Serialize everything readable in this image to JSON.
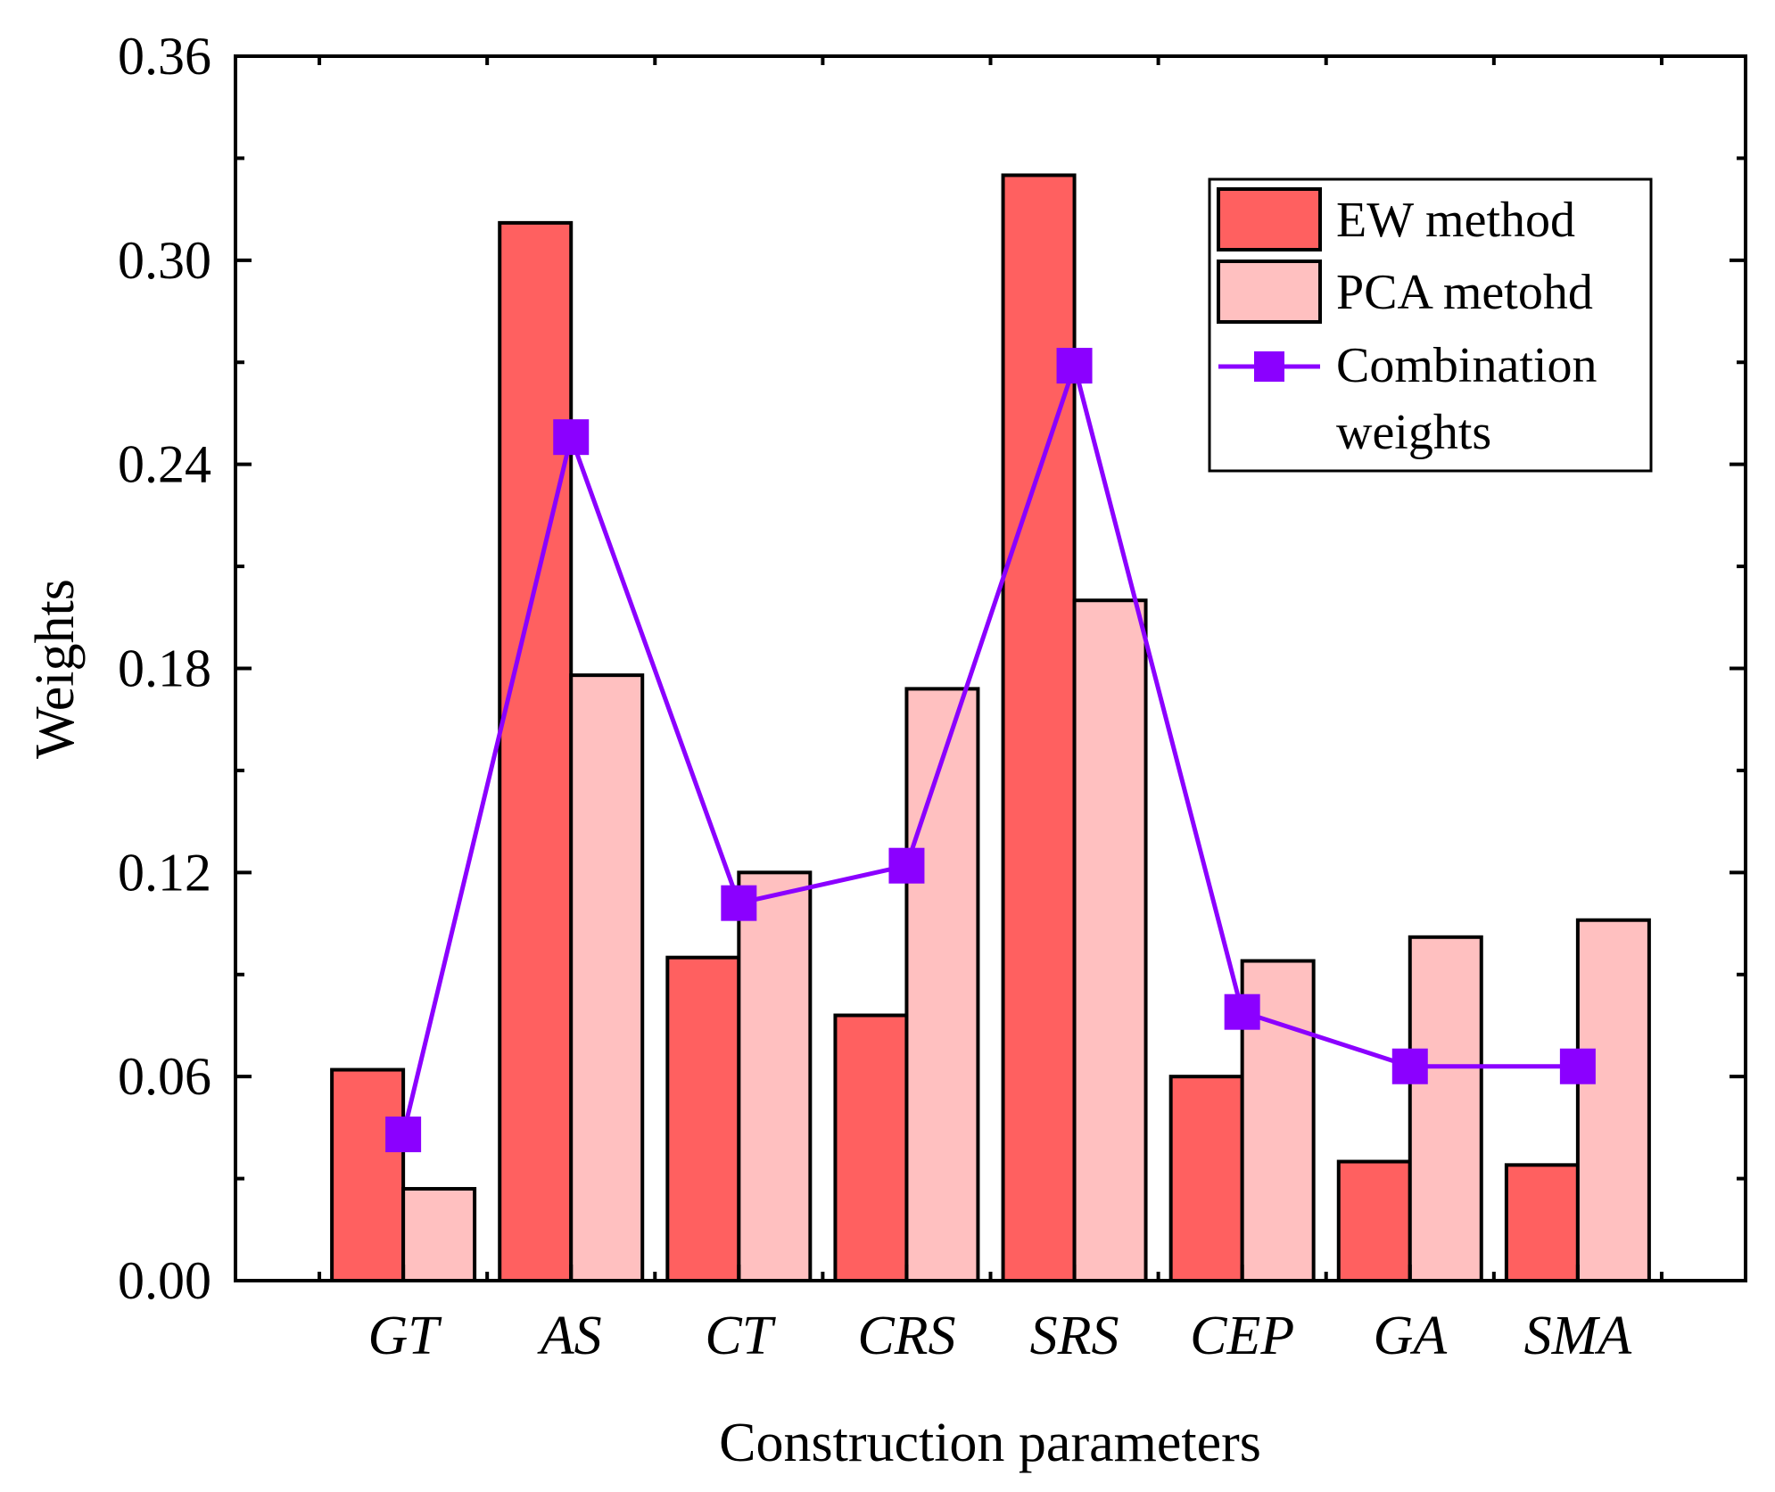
{
  "chart_data": {
    "type": "bar",
    "xlabel": "Construction parameters",
    "ylabel": "Weights",
    "categories": [
      "GT",
      "AS",
      "CT",
      "CRS",
      "SRS",
      "CEP",
      "GA",
      "SMA"
    ],
    "yticks": [
      "0.00",
      "0.06",
      "0.12",
      "0.18",
      "0.24",
      "0.30",
      "0.36"
    ],
    "ylim": [
      0,
      0.36
    ],
    "grid": false,
    "legend_position": "top-right",
    "series": [
      {
        "name": "EW method",
        "kind": "bar",
        "color": "#FF6060",
        "values": [
          0.062,
          0.311,
          0.095,
          0.078,
          0.325,
          0.06,
          0.035,
          0.034
        ]
      },
      {
        "name": "PCA metohd",
        "kind": "bar",
        "color": "#FFC0C0",
        "values": [
          0.027,
          0.178,
          0.12,
          0.174,
          0.2,
          0.094,
          0.101,
          0.106
        ]
      },
      {
        "name": "Combination weights",
        "legend_lines": [
          "Combination",
          "weights"
        ],
        "kind": "line",
        "color": "#8B00FF",
        "values": [
          0.043,
          0.248,
          0.111,
          0.122,
          0.269,
          0.079,
          0.063,
          0.063
        ]
      }
    ]
  }
}
